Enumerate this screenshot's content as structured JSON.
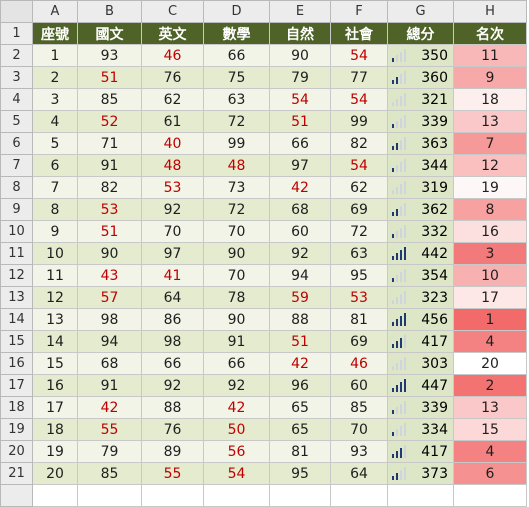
{
  "columns": [
    "A",
    "B",
    "C",
    "D",
    "E",
    "F",
    "G",
    "H"
  ],
  "headers": [
    "座號",
    "國文",
    "英文",
    "數學",
    "自然",
    "社會",
    "總分",
    "名次"
  ],
  "row_numbers": [
    "1",
    "2",
    "3",
    "4",
    "5",
    "6",
    "7",
    "8",
    "9",
    "10",
    "11",
    "12",
    "13",
    "14",
    "15",
    "16",
    "17",
    "18",
    "19",
    "20",
    "21"
  ],
  "rows": [
    {
      "seat": "1",
      "chinese": "93",
      "english": "46",
      "math": "66",
      "science": "90",
      "social": "54",
      "total": "350",
      "total_bars": 1,
      "rank": "11"
    },
    {
      "seat": "2",
      "chinese": "51",
      "english": "76",
      "math": "75",
      "science": "79",
      "social": "77",
      "total": "360",
      "total_bars": 2,
      "rank": "9"
    },
    {
      "seat": "3",
      "chinese": "85",
      "english": "62",
      "math": "63",
      "science": "54",
      "social": "54",
      "total": "321",
      "total_bars": 0,
      "rank": "18"
    },
    {
      "seat": "4",
      "chinese": "52",
      "english": "61",
      "math": "72",
      "science": "51",
      "social": "99",
      "total": "339",
      "total_bars": 1,
      "rank": "13"
    },
    {
      "seat": "5",
      "chinese": "71",
      "english": "40",
      "math": "99",
      "science": "66",
      "social": "82",
      "total": "363",
      "total_bars": 2,
      "rank": "7"
    },
    {
      "seat": "6",
      "chinese": "91",
      "english": "48",
      "math": "48",
      "science": "97",
      "social": "54",
      "total": "344",
      "total_bars": 1,
      "rank": "12"
    },
    {
      "seat": "7",
      "chinese": "82",
      "english": "53",
      "math": "73",
      "science": "42",
      "social": "62",
      "total": "319",
      "total_bars": 0,
      "rank": "19"
    },
    {
      "seat": "8",
      "chinese": "53",
      "english": "92",
      "math": "72",
      "science": "68",
      "social": "69",
      "total": "362",
      "total_bars": 2,
      "rank": "8"
    },
    {
      "seat": "9",
      "chinese": "51",
      "english": "70",
      "math": "70",
      "science": "60",
      "social": "72",
      "total": "332",
      "total_bars": 1,
      "rank": "16"
    },
    {
      "seat": "10",
      "chinese": "90",
      "english": "97",
      "math": "90",
      "science": "92",
      "social": "63",
      "total": "442",
      "total_bars": 4,
      "rank": "3"
    },
    {
      "seat": "11",
      "chinese": "43",
      "english": "41",
      "math": "70",
      "science": "94",
      "social": "95",
      "total": "354",
      "total_bars": 1,
      "rank": "10"
    },
    {
      "seat": "12",
      "chinese": "57",
      "english": "64",
      "math": "78",
      "science": "59",
      "social": "53",
      "total": "323",
      "total_bars": 0,
      "rank": "17"
    },
    {
      "seat": "13",
      "chinese": "98",
      "english": "86",
      "math": "90",
      "science": "88",
      "social": "81",
      "total": "456",
      "total_bars": 4,
      "rank": "1"
    },
    {
      "seat": "14",
      "chinese": "94",
      "english": "98",
      "math": "91",
      "science": "51",
      "social": "69",
      "total": "417",
      "total_bars": 3,
      "rank": "4"
    },
    {
      "seat": "15",
      "chinese": "68",
      "english": "66",
      "math": "66",
      "science": "42",
      "social": "46",
      "total": "303",
      "total_bars": 0,
      "rank": "20"
    },
    {
      "seat": "16",
      "chinese": "91",
      "english": "92",
      "math": "92",
      "science": "96",
      "social": "60",
      "total": "447",
      "total_bars": 4,
      "rank": "2"
    },
    {
      "seat": "17",
      "chinese": "42",
      "english": "88",
      "math": "42",
      "science": "65",
      "social": "85",
      "total": "339",
      "total_bars": 1,
      "rank": "13"
    },
    {
      "seat": "18",
      "chinese": "55",
      "english": "76",
      "math": "50",
      "science": "65",
      "social": "70",
      "total": "334",
      "total_bars": 1,
      "rank": "15"
    },
    {
      "seat": "19",
      "chinese": "79",
      "english": "89",
      "math": "56",
      "science": "81",
      "social": "93",
      "total": "417",
      "total_bars": 3,
      "rank": "4"
    },
    {
      "seat": "20",
      "chinese": "85",
      "english": "55",
      "math": "54",
      "science": "95",
      "social": "64",
      "total": "373",
      "total_bars": 2,
      "rank": "6"
    }
  ],
  "colors": {
    "title_bg": "#4f6228",
    "below_60": "#c00000",
    "band_a": "#f1f4e6",
    "band_b": "#e4ebcf",
    "bar_on": "#1f3a73",
    "bar_off": "#cfd5dc",
    "rank_scale_high": "#f26a6a",
    "rank_scale_low": "#ffffff"
  },
  "icons": {
    "total": "signal-bars-icon"
  }
}
